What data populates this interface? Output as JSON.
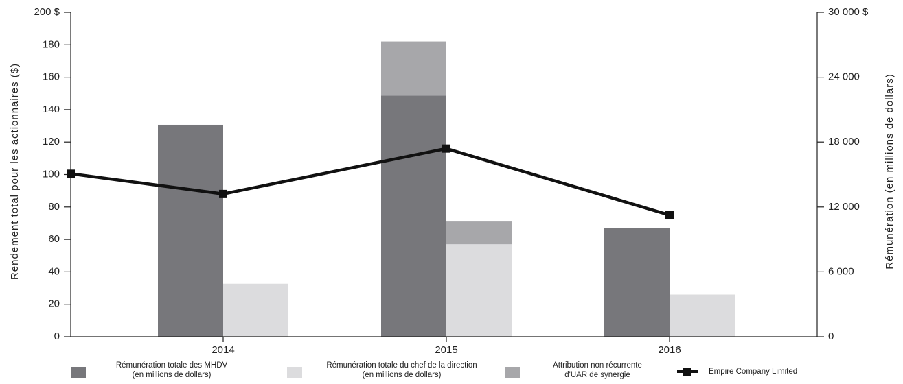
{
  "chart_data": {
    "type": "bar_line",
    "ylabel": "Rendement total pour les actionnaires ($)",
    "y2label": "Rémunération (en millions de dollars)",
    "categories": [
      null,
      "2014",
      "2015",
      "2016"
    ],
    "ylim": [
      0,
      200
    ],
    "yticks": [
      0,
      20,
      40,
      60,
      80,
      100,
      120,
      140,
      160,
      180,
      {
        "value": 200,
        "label": "200 $"
      }
    ],
    "y2lim": [
      0,
      30000
    ],
    "y2ticks": [
      0,
      {
        "value": 6000,
        "label": "6 000"
      },
      {
        "value": 12000,
        "label": "12 000"
      },
      {
        "value": 18000,
        "label": "18 000"
      },
      {
        "value": 24000,
        "label": "24 000"
      },
      {
        "value": 30000,
        "label": "30 000 $"
      }
    ],
    "series": [
      {
        "name": "Rémunération totale des MHDV\n(en millions de dollars)",
        "color": "#77777b",
        "axis": "y2",
        "values": [
          null,
          19600,
          22300,
          10050
        ]
      },
      {
        "name": "Rémunération totale du chef de la direction\n(en millions de dollars)",
        "color": "#dcdcde",
        "axis": "y2",
        "values": [
          null,
          4900,
          8550,
          3900
        ]
      },
      {
        "name": "Attribution non récurrente\nd'UAR de synergie",
        "color": "#a7a7aa",
        "axis": "y2",
        "values": [
          [
            null,
            null
          ],
          [
            null,
            null
          ],
          [
            5000,
            2100
          ],
          [
            null,
            null
          ]
        ]
      },
      {
        "name": "Empire Company Limited",
        "color": "#111111",
        "type": "line",
        "values": [
          100.5,
          88,
          116,
          75
        ]
      }
    ]
  }
}
